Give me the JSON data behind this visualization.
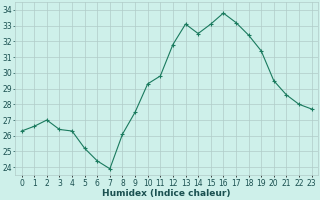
{
  "x": [
    0,
    1,
    2,
    3,
    4,
    5,
    6,
    7,
    8,
    9,
    10,
    11,
    12,
    13,
    14,
    15,
    16,
    17,
    18,
    19,
    20,
    21,
    22,
    23
  ],
  "y": [
    26.3,
    26.6,
    27.0,
    26.4,
    26.3,
    25.2,
    24.4,
    23.9,
    26.1,
    27.5,
    29.3,
    29.8,
    31.8,
    33.1,
    32.5,
    33.1,
    33.8,
    33.2,
    32.4,
    31.4,
    29.5,
    28.6,
    28.0,
    27.7
  ],
  "line_color": "#1a7a5e",
  "marker": "+",
  "marker_size": 3,
  "bg_color": "#cef0ea",
  "grid_color": "#b0ccc8",
  "xlabel": "Humidex (Indice chaleur)",
  "ylabel_ticks": [
    24,
    25,
    26,
    27,
    28,
    29,
    30,
    31,
    32,
    33,
    34
  ],
  "ylim": [
    23.5,
    34.5
  ],
  "xlim": [
    -0.5,
    23.5
  ],
  "tick_label_color": "#1a5050",
  "font_size_axis": 5.5,
  "font_size_label": 6.5,
  "linewidth": 0.8,
  "markeredgewidth": 0.8
}
